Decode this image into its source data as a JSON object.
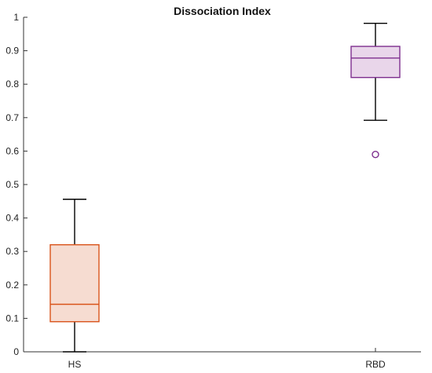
{
  "chart_data": {
    "type": "box",
    "title": "Dissociation Index",
    "xlabel": "",
    "ylabel": "",
    "ylim": [
      0,
      1
    ],
    "yticks": [
      "0",
      "0.1",
      "0.2",
      "0.3",
      "0.4",
      "0.5",
      "0.6",
      "0.7",
      "0.8",
      "0.9",
      "1"
    ],
    "grid": false,
    "categories": [
      "HS",
      "RBD"
    ],
    "series": [
      {
        "category": "HS",
        "whisker_low": 0.0,
        "q1": 0.09,
        "median": 0.142,
        "q3": 0.32,
        "whisker_high": 0.456,
        "outliers": [],
        "color": "#D95319",
        "fill": "#F6DCD1"
      },
      {
        "category": "RBD",
        "whisker_low": 0.692,
        "q1": 0.82,
        "median": 0.878,
        "q3": 0.913,
        "whisker_high": 0.982,
        "outliers": [
          0.59
        ],
        "color": "#7E2F8E",
        "fill": "#E9D6EA"
      }
    ]
  }
}
